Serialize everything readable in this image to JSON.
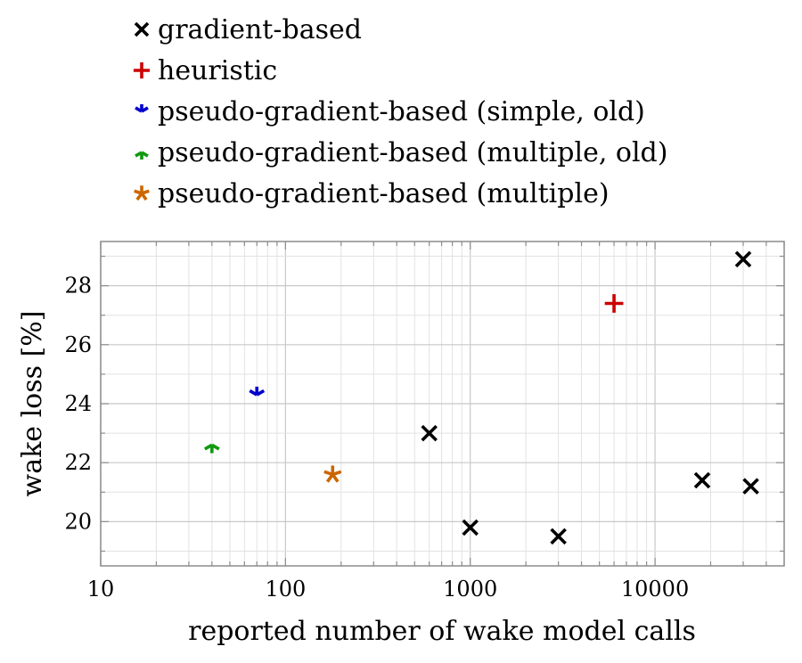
{
  "chart_data": {
    "type": "scatter",
    "title": "",
    "xlabel": "reported number of wake model calls",
    "ylabel": "wake loss [%]",
    "xscale": "log",
    "xlim": [
      10,
      50000
    ],
    "ylim": [
      18.5,
      29.5
    ],
    "xticks": [
      10,
      100,
      1000,
      10000
    ],
    "xtick_labels": [
      "10",
      "100",
      "1000",
      "10000"
    ],
    "yticks": [
      20,
      22,
      24,
      26,
      28
    ],
    "ytick_labels": [
      "20",
      "22",
      "24",
      "26",
      "28"
    ],
    "grid": true,
    "legend_position": "above plot, left",
    "series": [
      {
        "name": "gradient-based",
        "marker": "x",
        "color": "#000000",
        "points": [
          {
            "x": 600,
            "y": 23.0
          },
          {
            "x": 1000,
            "y": 19.8
          },
          {
            "x": 3000,
            "y": 19.5
          },
          {
            "x": 18000,
            "y": 21.4
          },
          {
            "x": 30000,
            "y": 28.9
          },
          {
            "x": 33000,
            "y": 21.2
          }
        ]
      },
      {
        "name": "heuristic",
        "marker": "plus",
        "color": "#cc0000",
        "points": [
          {
            "x": 6000,
            "y": 27.4
          }
        ]
      },
      {
        "name": "pseudo-gradient-based (simple, old)",
        "marker": "tri-up",
        "color": "#0000cc",
        "points": [
          {
            "x": 70,
            "y": 24.3
          }
        ]
      },
      {
        "name": "pseudo-gradient-based (multiple, old)",
        "marker": "tri-down",
        "color": "#119911",
        "points": [
          {
            "x": 40,
            "y": 22.6
          }
        ]
      },
      {
        "name": "pseudo-gradient-based (multiple)",
        "marker": "star",
        "color": "#cc6600",
        "points": [
          {
            "x": 180,
            "y": 21.6
          }
        ]
      }
    ]
  }
}
